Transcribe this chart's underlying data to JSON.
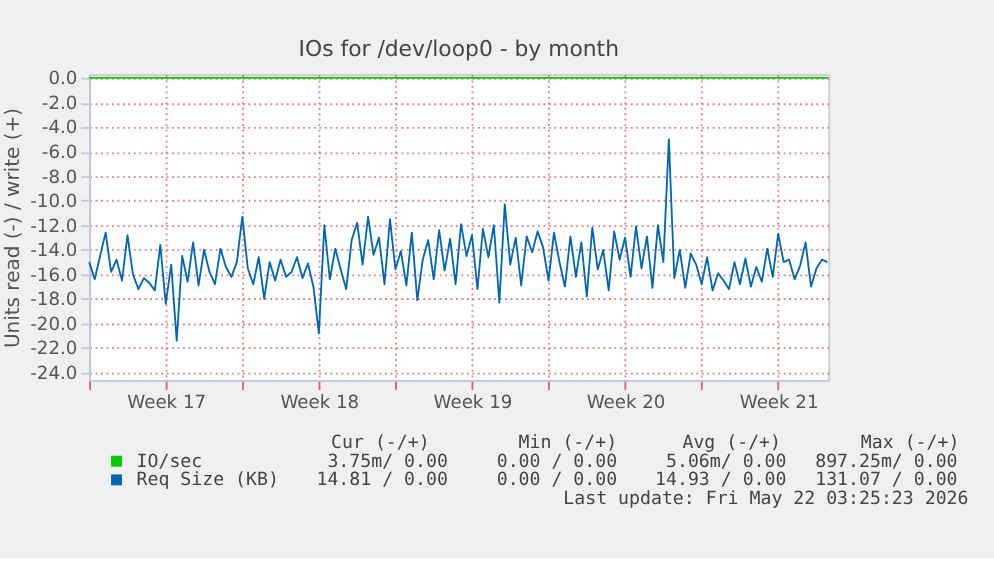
{
  "chart_data": {
    "type": "line",
    "title": "IOs for /dev/loop0 - by month",
    "ylabel": "Units read (-) / write (+)",
    "xlim": [
      "2026-04-20T00:00",
      "2026-05-23T19:00"
    ],
    "ylim": [
      -24.6,
      0.3
    ],
    "xticks": [
      {
        "value": "2026-04-20T00:00",
        "label": null
      },
      {
        "value": "2026-04-23T12:00",
        "label": "Week 17"
      },
      {
        "value": "2026-04-27T00:00",
        "label": null
      },
      {
        "value": "2026-04-30T12:00",
        "label": "Week 18"
      },
      {
        "value": "2026-05-04T00:00",
        "label": null
      },
      {
        "value": "2026-05-07T12:00",
        "label": "Week 19"
      },
      {
        "value": "2026-05-11T00:00",
        "label": null
      },
      {
        "value": "2026-05-14T12:00",
        "label": "Week 20"
      },
      {
        "value": "2026-05-18T00:00",
        "label": null
      },
      {
        "value": "2026-05-21T12:00",
        "label": "Week 21"
      }
    ],
    "yticks": [
      {
        "value": 0,
        "label": "0.0"
      },
      {
        "value": -2,
        "label": "-2.0"
      },
      {
        "value": -4,
        "label": "-4.0"
      },
      {
        "value": -6,
        "label": "-6.0"
      },
      {
        "value": -8,
        "label": "-8.0"
      },
      {
        "value": -10,
        "label": "-10.0"
      },
      {
        "value": -12,
        "label": "-12.0"
      },
      {
        "value": -14,
        "label": "-14.0"
      },
      {
        "value": -16,
        "label": "-16.0"
      },
      {
        "value": -18,
        "label": "-18.0"
      },
      {
        "value": -20,
        "label": "-20.0"
      },
      {
        "value": -22,
        "label": "-22.0"
      },
      {
        "value": -24,
        "label": "-24.0"
      }
    ],
    "grid": true,
    "legend": "bottom left",
    "marker": "none",
    "line_style": "solid",
    "x": [
      "2026-04-20T00:00",
      "2026-04-20T06:00",
      "2026-04-20T12:00",
      "2026-04-20T18:00",
      "2026-04-21T00:00",
      "2026-04-21T06:00",
      "2026-04-21T12:00",
      "2026-04-21T18:00",
      "2026-04-22T00:00",
      "2026-04-22T06:00",
      "2026-04-22T12:00",
      "2026-04-22T18:00",
      "2026-04-23T00:00",
      "2026-04-23T06:00",
      "2026-04-23T12:00",
      "2026-04-23T18:00",
      "2026-04-24T00:00",
      "2026-04-24T06:00",
      "2026-04-24T12:00",
      "2026-04-24T18:00",
      "2026-04-25T00:00",
      "2026-04-25T06:00",
      "2026-04-25T12:00",
      "2026-04-25T18:00",
      "2026-04-26T00:00",
      "2026-04-26T06:00",
      "2026-04-26T12:00",
      "2026-04-26T18:00",
      "2026-04-27T00:00",
      "2026-04-27T06:00",
      "2026-04-27T12:00",
      "2026-04-27T18:00",
      "2026-04-28T00:00",
      "2026-04-28T06:00",
      "2026-04-28T12:00",
      "2026-04-28T18:00",
      "2026-04-29T00:00",
      "2026-04-29T06:00",
      "2026-04-29T12:00",
      "2026-04-29T18:00",
      "2026-04-30T00:00",
      "2026-04-30T06:00",
      "2026-04-30T12:00",
      "2026-04-30T18:00",
      "2026-05-01T00:00",
      "2026-05-01T06:00",
      "2026-05-01T12:00",
      "2026-05-01T18:00",
      "2026-05-02T00:00",
      "2026-05-02T06:00",
      "2026-05-02T12:00",
      "2026-05-02T18:00",
      "2026-05-03T00:00",
      "2026-05-03T06:00",
      "2026-05-03T12:00",
      "2026-05-03T18:00",
      "2026-05-04T00:00",
      "2026-05-04T06:00",
      "2026-05-04T12:00",
      "2026-05-04T18:00",
      "2026-05-05T00:00",
      "2026-05-05T06:00",
      "2026-05-05T12:00",
      "2026-05-05T18:00",
      "2026-05-06T00:00",
      "2026-05-06T06:00",
      "2026-05-06T12:00",
      "2026-05-06T18:00",
      "2026-05-07T00:00",
      "2026-05-07T06:00",
      "2026-05-07T12:00",
      "2026-05-07T18:00",
      "2026-05-08T00:00",
      "2026-05-08T06:00",
      "2026-05-08T12:00",
      "2026-05-08T18:00",
      "2026-05-09T00:00",
      "2026-05-09T06:00",
      "2026-05-09T12:00",
      "2026-05-09T18:00",
      "2026-05-10T00:00",
      "2026-05-10T06:00",
      "2026-05-10T12:00",
      "2026-05-10T18:00",
      "2026-05-11T00:00",
      "2026-05-11T06:00",
      "2026-05-11T12:00",
      "2026-05-11T18:00",
      "2026-05-12T00:00",
      "2026-05-12T06:00",
      "2026-05-12T12:00",
      "2026-05-12T18:00",
      "2026-05-13T00:00",
      "2026-05-13T06:00",
      "2026-05-13T12:00",
      "2026-05-13T18:00",
      "2026-05-14T00:00",
      "2026-05-14T06:00",
      "2026-05-14T12:00",
      "2026-05-14T18:00",
      "2026-05-15T00:00",
      "2026-05-15T06:00",
      "2026-05-15T12:00",
      "2026-05-15T18:00",
      "2026-05-16T00:00",
      "2026-05-16T06:00",
      "2026-05-16T12:00",
      "2026-05-16T18:00",
      "2026-05-17T00:00",
      "2026-05-17T06:00",
      "2026-05-17T12:00",
      "2026-05-17T18:00",
      "2026-05-18T00:00",
      "2026-05-18T06:00",
      "2026-05-18T12:00",
      "2026-05-18T18:00",
      "2026-05-19T00:00",
      "2026-05-19T06:00",
      "2026-05-19T12:00",
      "2026-05-19T18:00",
      "2026-05-20T00:00",
      "2026-05-20T06:00",
      "2026-05-20T12:00",
      "2026-05-20T18:00",
      "2026-05-21T00:00",
      "2026-05-21T06:00",
      "2026-05-21T12:00",
      "2026-05-21T18:00",
      "2026-05-22T00:00",
      "2026-05-22T06:00",
      "2026-05-22T12:00",
      "2026-05-22T18:00",
      "2026-05-23T00:00",
      "2026-05-23T06:00",
      "2026-05-23T12:00",
      "2026-05-23T18:00"
    ],
    "series": [
      {
        "name": "IO/sec",
        "color": "#00cc00",
        "x": [
          "2026-04-20T00:00",
          "2026-05-23T19:00"
        ],
        "values": [
          0,
          0
        ]
      },
      {
        "name": "Req Size (KB)",
        "color": "#0066b3",
        "values": [
          -15.0,
          -16.4,
          -14.5,
          -12.6,
          -15.8,
          -14.8,
          -16.5,
          -12.8,
          -16.0,
          -17.2,
          -16.3,
          -16.7,
          -17.3,
          -13.6,
          -18.4,
          -15.2,
          -21.4,
          -14.5,
          -16.6,
          -13.4,
          -16.9,
          -14.0,
          -15.8,
          -16.8,
          -13.9,
          -15.4,
          -16.2,
          -15.0,
          -11.3,
          -15.5,
          -16.8,
          -14.6,
          -18.0,
          -15.0,
          -16.5,
          -14.8,
          -16.2,
          -15.8,
          -14.6,
          -16.3,
          -15.1,
          -17.0,
          -20.8,
          -12.0,
          -16.4,
          -13.9,
          -15.6,
          -17.2,
          -13.2,
          -11.8,
          -15.2,
          -11.3,
          -14.4,
          -13.0,
          -16.8,
          -11.5,
          -15.6,
          -14.1,
          -16.9,
          -12.6,
          -18.1,
          -14.8,
          -13.2,
          -16.4,
          -12.4,
          -15.7,
          -13.1,
          -16.8,
          -11.9,
          -14.5,
          -12.8,
          -17.2,
          -12.3,
          -14.6,
          -12.0,
          -18.3,
          -10.3,
          -15.2,
          -13.0,
          -16.9,
          -12.9,
          -14.2,
          -12.5,
          -13.8,
          -16.5,
          -12.6,
          -15.0,
          -17.0,
          -12.9,
          -16.2,
          -13.4,
          -17.8,
          -12.2,
          -15.6,
          -14.0,
          -17.3,
          -12.5,
          -14.8,
          -13.0,
          -16.2,
          -12.1,
          -15.5,
          -12.9,
          -17.1,
          -12.0,
          -15.0,
          -5.0,
          -16.3,
          -14.0,
          -17.1,
          -14.3,
          -15.2,
          -16.8,
          -14.6,
          -17.3,
          -15.9,
          -16.5,
          -17.2,
          -15.0,
          -16.8,
          -14.7,
          -17.0,
          -15.4,
          -16.6,
          -13.9,
          -16.2,
          -12.7,
          -15.0,
          -14.8,
          -16.4,
          -15.3,
          -13.4,
          -17.0,
          -15.5,
          -14.8,
          -15.0
        ]
      }
    ],
    "annotations": [
      "Cur (-/+)",
      "Min (-/+)",
      "Avg (-/+)",
      "Max (-/+)",
      "3.75m/ 0.00",
      "0.00 / 0.00",
      "5.06m/ 0.00",
      "897.25m/ 0.00",
      "14.81 / 0.00",
      "0.00 / 0.00",
      "14.93 / 0.00",
      "131.07 / 0.00",
      "Last update: Fri May 22 03:25:23 2026"
    ]
  }
}
